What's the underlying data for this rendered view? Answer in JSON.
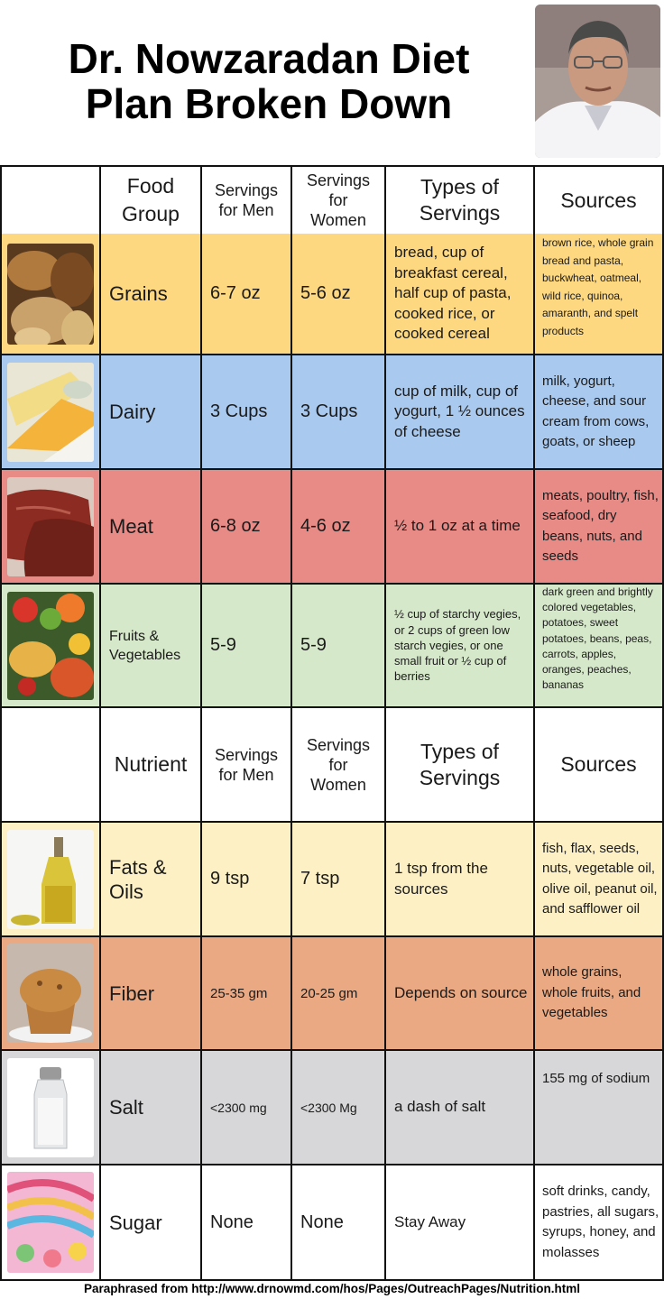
{
  "title": {
    "line1": "Dr. Nowzaradan Diet",
    "line2": "Plan Broken Down"
  },
  "header1": {
    "group": [
      "Food",
      "Group"
    ],
    "men": [
      "Servings",
      "for Men"
    ],
    "women": [
      "Servings",
      "for",
      "Women"
    ],
    "types": [
      "Types of",
      "Servings"
    ],
    "sources": "Sources"
  },
  "header2": {
    "group": "Nutrient",
    "men": [
      "Servings",
      "for Men"
    ],
    "women": [
      "Servings",
      "for",
      "Women"
    ],
    "types": [
      "Types of",
      "Servings"
    ],
    "sources": "Sources"
  },
  "rows": [
    {
      "name": "Grains",
      "men": "6-7 oz",
      "women": "5-6 oz",
      "types": "bread, cup of breakfast cereal, half cup of pasta, cooked rice, or cooked cereal",
      "sources": "brown rice, whole grain bread and pasta, buckwheat, oatmeal, wild rice, quinoa, amaranth, and spelt products",
      "color": "#fdd880",
      "image": "bread-grains-photo"
    },
    {
      "name": "Dairy",
      "men": "3 Cups",
      "women": "3 Cups",
      "types": "cup of milk, cup of yogurt, 1 ½ ounces of cheese",
      "sources": "milk, yogurt, cheese, and sour cream from cows, goats, or sheep",
      "color": "#aac9ee",
      "image": "cheese-wedges-photo"
    },
    {
      "name": "Meat",
      "men": "6-8 oz",
      "women": "4-6 oz",
      "types": "½ to 1 oz at a time",
      "sources": "meats, poultry, fish, seafood, dry beans, nuts, and seeds",
      "color": "#e88a86",
      "image": "raw-meat-photo"
    },
    {
      "name": "Fruits & Vegetables",
      "men": "5-9",
      "women": "5-9",
      "types": "½ cup of starchy vegies, or 2 cups of green low starch vegies, or one small fruit or ½ cup of berries",
      "sources": "dark green and brightly colored vegetables, potatoes, sweet potatoes, beans, peas, carrots, apples, oranges, peaches, bananas",
      "color": "#d5e8c9",
      "image": "fruit-vegetable-bowls-photo"
    },
    {
      "name": "Fats & Oils",
      "men": "9 tsp",
      "women": "7 tsp",
      "types": "1 tsp from the sources",
      "sources": "fish, flax, seeds, nuts, vegetable oil, olive oil, peanut oil, and safflower oil",
      "color": "#fdf0c5",
      "image": "olive-oil-bottle-photo"
    },
    {
      "name": "Fiber",
      "men": "25-35 gm",
      "women": "20-25 gm",
      "types": "Depends on source",
      "sources": "whole grains, whole fruits, and vegetables",
      "color": "#eaa982",
      "image": "muffin-photo"
    },
    {
      "name": "Salt",
      "men": "<2300 mg",
      "women": "<2300 Mg",
      "types": "a dash of salt",
      "sources": "155 mg of sodium",
      "color": "#d7d7d9",
      "image": "salt-shaker-photo"
    },
    {
      "name": "Sugar",
      "men": "None",
      "women": "None",
      "types": "Stay Away",
      "sources": "soft drinks, candy, pastries, all sugars, syrups, honey, and molasses",
      "color": "#ffffff",
      "image": "candy-sweets-photo"
    }
  ],
  "footer": "Paraphrased from http://www.drnowmd.com/hos/Pages/OutreachPages/Nutrition.html"
}
